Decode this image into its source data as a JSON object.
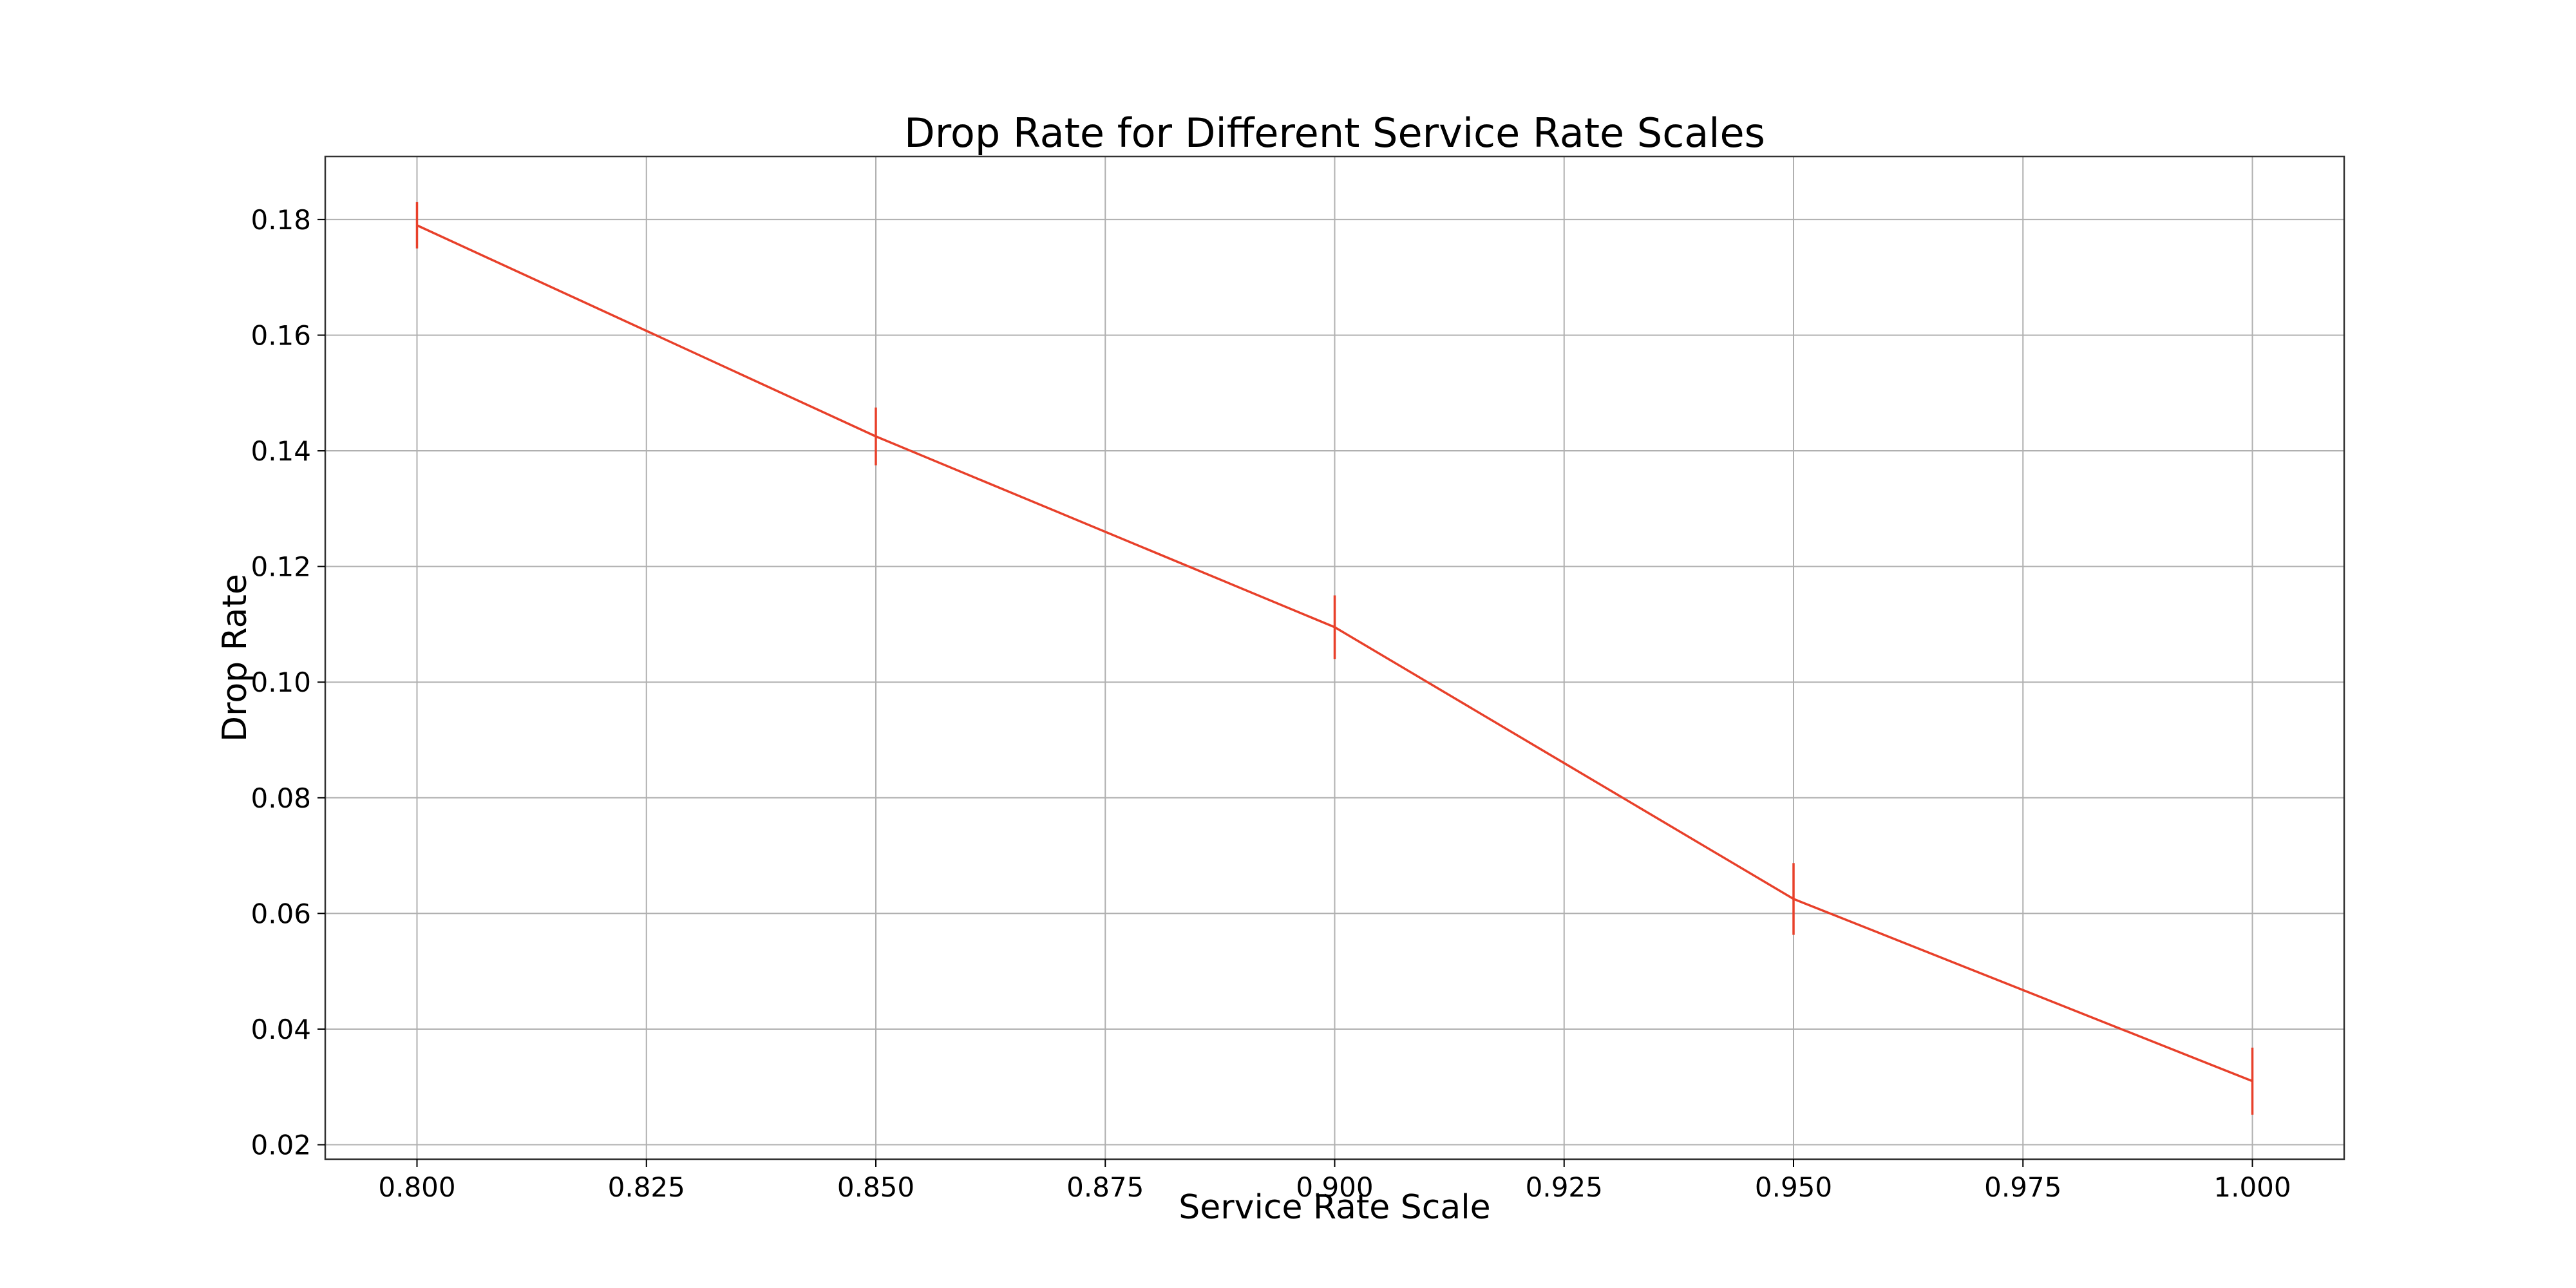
{
  "chart_data": {
    "type": "line",
    "title": "Drop Rate for Different Service Rate Scales",
    "xlabel": "Service Rate Scale",
    "ylabel": "Drop Rate",
    "xlim": [
      0.79,
      1.01
    ],
    "ylim": [
      0.0175,
      0.1909
    ],
    "x_ticks": [
      0.8,
      0.825,
      0.85,
      0.875,
      0.9,
      0.925,
      0.95,
      0.975,
      1.0
    ],
    "x_tick_labels": [
      "0.800",
      "0.825",
      "0.850",
      "0.875",
      "0.900",
      "0.925",
      "0.950",
      "0.975",
      "1.000"
    ],
    "y_ticks": [
      0.02,
      0.04,
      0.06,
      0.08,
      0.1,
      0.12,
      0.14,
      0.16,
      0.18
    ],
    "y_tick_labels": [
      "0.02",
      "0.04",
      "0.06",
      "0.08",
      "0.10",
      "0.12",
      "0.14",
      "0.16",
      "0.18"
    ],
    "grid": true,
    "legend": false,
    "series": [
      {
        "color": "#e8402a",
        "x": [
          0.8,
          0.85,
          0.9,
          0.95,
          1.0
        ],
        "y": [
          0.179,
          0.1425,
          0.1095,
          0.0625,
          0.031
        ],
        "y_err": [
          0.004,
          0.005,
          0.0055,
          0.0062,
          0.0058
        ]
      }
    ]
  }
}
